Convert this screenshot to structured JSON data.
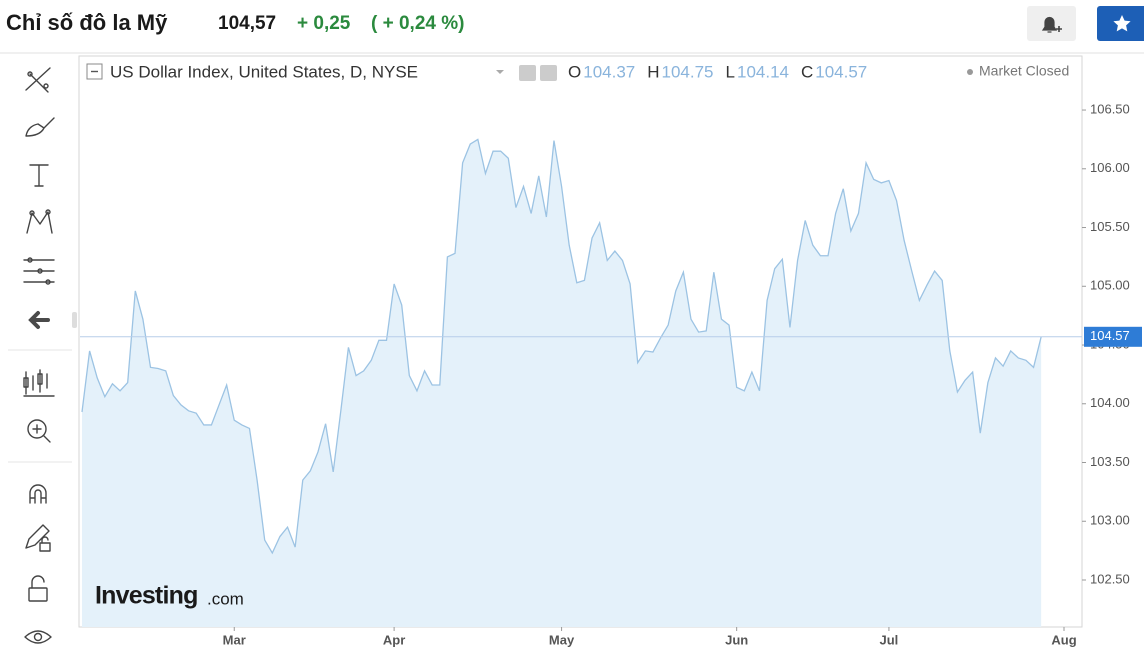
{
  "header": {
    "title": "Chỉ số đô la Mỹ",
    "price": "104,57",
    "change": "+ 0,25",
    "change_pct": "( + 0,24 %)"
  },
  "chart_data": {
    "type": "area",
    "title": "US Dollar Index, United States, D, NYSE",
    "ohlc": [
      {
        "label": "O",
        "value": 104.37
      },
      {
        "label": "H",
        "value": 104.75
      },
      {
        "label": "L",
        "value": 104.14
      },
      {
        "label": "C",
        "value": 104.57
      }
    ],
    "status": "Market Closed",
    "watermark": {
      "brand": "Investing",
      "suffix": ".com"
    },
    "categories": [
      null,
      null,
      null,
      null,
      null,
      null,
      null,
      null,
      null,
      null,
      null,
      null,
      null,
      null,
      null,
      null,
      null,
      null,
      null,
      null,
      "Mar",
      null,
      null,
      null,
      null,
      null,
      null,
      null,
      null,
      null,
      null,
      null,
      null,
      null,
      null,
      null,
      null,
      null,
      null,
      null,
      null,
      "Apr",
      null,
      null,
      null,
      null,
      null,
      null,
      null,
      null,
      null,
      null,
      null,
      null,
      null,
      null,
      null,
      null,
      null,
      null,
      null,
      null,
      null,
      "May",
      null,
      null,
      null,
      null,
      null,
      null,
      null,
      null,
      null,
      null,
      null,
      null,
      null,
      null,
      null,
      null,
      null,
      null,
      null,
      null,
      null,
      null,
      "Jun",
      null,
      null,
      null,
      null,
      null,
      null,
      null,
      null,
      null,
      null,
      null,
      null,
      null,
      null,
      null,
      null,
      null,
      null,
      null,
      "Jul",
      null,
      null,
      null,
      null,
      null,
      null,
      null,
      null,
      null,
      null,
      null,
      null,
      null,
      null,
      null,
      null,
      null,
      null,
      null,
      null,
      null,
      null,
      "Aug"
    ],
    "values": [
      103.93,
      104.45,
      104.22,
      104.06,
      104.17,
      104.11,
      104.18,
      104.96,
      104.72,
      104.31,
      104.3,
      104.28,
      104.07,
      103.99,
      103.94,
      103.92,
      103.82,
      103.82,
      103.99,
      104.16,
      103.86,
      103.82,
      103.79,
      103.35,
      102.84,
      102.73,
      102.87,
      102.95,
      102.78,
      103.35,
      103.43,
      103.59,
      103.83,
      103.42,
      103.94,
      104.48,
      104.24,
      104.28,
      104.37,
      104.54,
      104.54,
      105.02,
      104.84,
      104.24,
      104.11,
      104.28,
      104.16,
      104.16,
      105.25,
      105.28,
      106.05,
      106.21,
      106.25,
      105.96,
      106.15,
      106.15,
      106.09,
      105.67,
      105.85,
      105.62,
      105.94,
      105.59,
      106.24,
      105.85,
      105.35,
      105.03,
      105.05,
      105.41,
      105.54,
      105.22,
      105.3,
      105.22,
      105.02,
      104.35,
      104.45,
      104.44,
      104.56,
      104.67,
      104.96,
      105.12,
      104.72,
      104.61,
      104.62,
      105.12,
      104.72,
      104.67,
      104.14,
      104.11,
      104.27,
      104.11,
      104.88,
      105.15,
      105.23,
      104.65,
      105.22,
      105.56,
      105.35,
      105.26,
      105.26,
      105.62,
      105.83,
      105.47,
      105.62,
      106.05,
      105.91,
      105.88,
      105.9,
      105.73,
      105.39,
      105.13,
      104.88,
      105.01,
      105.13,
      105.05,
      104.45,
      104.1,
      104.2,
      104.27,
      103.75,
      104.18,
      104.39,
      104.32,
      104.45,
      104.39,
      104.37,
      104.31,
      104.57,
      null,
      null,
      null
    ],
    "color": "#9cc3e3",
    "fill": "#e4f1fa",
    "current_price": 104.57,
    "current_color": "#2e7cd6",
    "ylim": [
      102.1,
      106.96
    ],
    "yticks": [
      {
        "value": 102.5,
        "label": "102.50"
      },
      {
        "value": 103,
        "label": "103.00"
      },
      {
        "value": 103.5,
        "label": "103.50"
      },
      {
        "value": 104,
        "label": "104.00"
      },
      {
        "value": 104.5,
        "label": "104.50"
      },
      {
        "value": 105,
        "label": "105.00"
      },
      {
        "value": 105.5,
        "label": "105.50"
      },
      {
        "value": 106,
        "label": "106.00"
      },
      {
        "value": 106.5,
        "label": "106.50"
      }
    ]
  }
}
